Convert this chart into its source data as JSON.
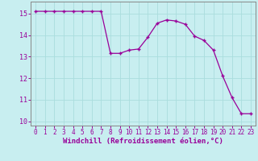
{
  "x": [
    0,
    1,
    2,
    3,
    4,
    5,
    6,
    7,
    8,
    9,
    10,
    11,
    12,
    13,
    14,
    15,
    16,
    17,
    18,
    19,
    20,
    21,
    22,
    23
  ],
  "y": [
    15.1,
    15.1,
    15.1,
    15.1,
    15.1,
    15.1,
    15.1,
    15.1,
    13.15,
    13.15,
    13.3,
    13.35,
    13.9,
    14.55,
    14.7,
    14.65,
    14.5,
    13.95,
    13.75,
    13.3,
    12.1,
    11.1,
    10.35,
    10.35
  ],
  "xlabel": "Windchill (Refroidissement éolien,°C)",
  "bg_color": "#c8eef0",
  "line_color": "#990099",
  "grid_color": "#aadddd",
  "spine_color": "#888888",
  "ylim": [
    9.8,
    15.55
  ],
  "xlim": [
    -0.5,
    23.5
  ],
  "yticks": [
    10,
    11,
    12,
    13,
    14,
    15
  ],
  "xticks": [
    0,
    1,
    2,
    3,
    4,
    5,
    6,
    7,
    8,
    9,
    10,
    11,
    12,
    13,
    14,
    15,
    16,
    17,
    18,
    19,
    20,
    21,
    22,
    23
  ],
  "tick_fontsize": 5.5,
  "xlabel_fontsize": 6.5
}
